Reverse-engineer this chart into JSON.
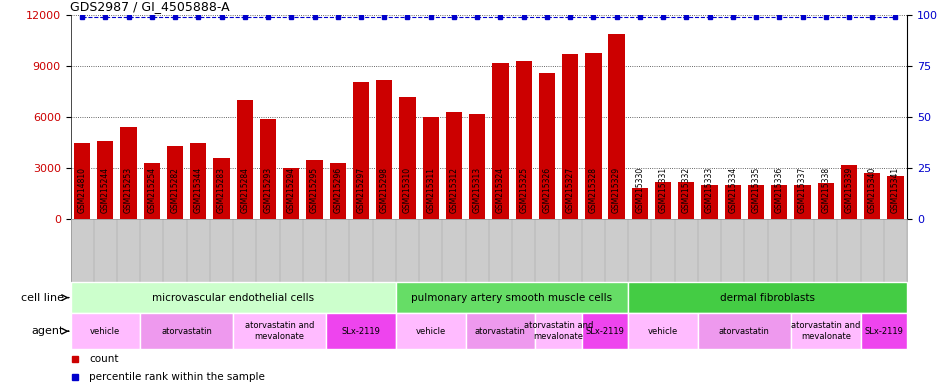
{
  "title": "GDS2987 / GI_4505888-A",
  "gsm_labels": [
    "GSM214810",
    "GSM215244",
    "GSM215253",
    "GSM215254",
    "GSM215282",
    "GSM215344",
    "GSM215283",
    "GSM215284",
    "GSM215293",
    "GSM215294",
    "GSM215295",
    "GSM215296",
    "GSM215297",
    "GSM215298",
    "GSM215310",
    "GSM215311",
    "GSM215312",
    "GSM215313",
    "GSM215324",
    "GSM215325",
    "GSM215326",
    "GSM215327",
    "GSM215328",
    "GSM215329",
    "GSM215330",
    "GSM215331",
    "GSM215332",
    "GSM215333",
    "GSM215334",
    "GSM215335",
    "GSM215336",
    "GSM215337",
    "GSM215338",
    "GSM215339",
    "GSM215340",
    "GSM215341"
  ],
  "bar_values": [
    4500,
    4600,
    5400,
    3300,
    4300,
    4500,
    3600,
    7000,
    5900,
    3000,
    3500,
    3300,
    8100,
    8200,
    7200,
    6000,
    6300,
    6200,
    9200,
    9300,
    8600,
    9700,
    9800,
    10900,
    1800,
    2200,
    2200,
    2000,
    2000,
    2000,
    2000,
    2000,
    2100,
    3200,
    2700,
    2500
  ],
  "percentile_values": [
    99,
    99,
    99,
    99,
    99,
    99,
    99,
    99,
    99,
    99,
    99,
    99,
    99,
    99,
    99,
    99,
    99,
    99,
    99,
    99,
    99,
    99,
    99,
    99,
    99,
    99,
    99,
    99,
    99,
    99,
    99,
    99,
    99,
    99,
    99,
    99
  ],
  "bar_color": "#cc0000",
  "percentile_color": "#0000cc",
  "ylim_left": [
    0,
    12000
  ],
  "ylim_right": [
    0,
    100
  ],
  "yticks_left": [
    0,
    3000,
    6000,
    9000,
    12000
  ],
  "yticks_right": [
    0,
    25,
    50,
    75,
    100
  ],
  "cell_line_groups": [
    {
      "label": "microvascular endothelial cells",
      "start": 0,
      "end": 14,
      "color": "#ccffcc"
    },
    {
      "label": "pulmonary artery smooth muscle cells",
      "start": 14,
      "end": 24,
      "color": "#66dd66"
    },
    {
      "label": "dermal fibroblasts",
      "start": 24,
      "end": 36,
      "color": "#44cc44"
    }
  ],
  "agent_groups": [
    {
      "label": "vehicle",
      "start": 0,
      "end": 3,
      "color": "#ffbbff"
    },
    {
      "label": "atorvastatin",
      "start": 3,
      "end": 7,
      "color": "#ee99ee"
    },
    {
      "label": "atorvastatin and\nmevalonate",
      "start": 7,
      "end": 11,
      "color": "#ffbbff"
    },
    {
      "label": "SLx-2119",
      "start": 11,
      "end": 14,
      "color": "#ee44ee"
    },
    {
      "label": "vehicle",
      "start": 14,
      "end": 17,
      "color": "#ffbbff"
    },
    {
      "label": "atorvastatin",
      "start": 17,
      "end": 20,
      "color": "#ee99ee"
    },
    {
      "label": "atorvastatin and\nmevalonate",
      "start": 20,
      "end": 22,
      "color": "#ffbbff"
    },
    {
      "label": "SLx-2119",
      "start": 22,
      "end": 24,
      "color": "#ee44ee"
    },
    {
      "label": "vehicle",
      "start": 24,
      "end": 27,
      "color": "#ffbbff"
    },
    {
      "label": "atorvastatin",
      "start": 27,
      "end": 31,
      "color": "#ee99ee"
    },
    {
      "label": "atorvastatin and\nmevalonate",
      "start": 31,
      "end": 34,
      "color": "#ffbbff"
    },
    {
      "label": "SLx-2119",
      "start": 34,
      "end": 36,
      "color": "#ee44ee"
    }
  ],
  "cell_line_label": "cell line",
  "agent_label": "agent",
  "legend_count_color": "#cc0000",
  "legend_percentile_color": "#0000cc",
  "tick_area_bg": "#cccccc",
  "plot_bg": "#ffffff",
  "gridline_color": "#333333"
}
